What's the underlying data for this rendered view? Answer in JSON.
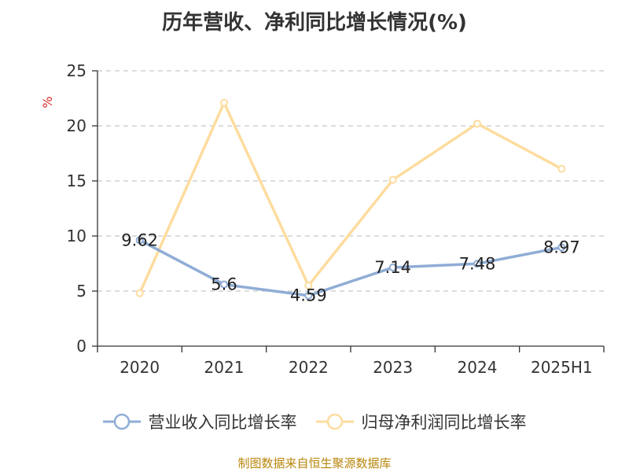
{
  "chart_data": {
    "type": "line",
    "title": "历年营收、净利同比增长情况(%)",
    "ylabel": "%",
    "categories": [
      "2020",
      "2021",
      "2022",
      "2023",
      "2024",
      "2025H1"
    ],
    "ylim": [
      0,
      25
    ],
    "yticks": [
      0,
      5,
      10,
      15,
      20,
      25
    ],
    "grid": true,
    "legend_position": "bottom",
    "series": [
      {
        "name": "营业收入同比增长率",
        "color": "#8fadd6",
        "values": [
          9.62,
          5.6,
          4.59,
          7.14,
          7.48,
          8.97
        ],
        "labels_shown": true
      },
      {
        "name": "归母净利润同比增长率",
        "color": "#fddc9e",
        "values": [
          4.8,
          22.1,
          5.5,
          15.1,
          20.2,
          16.1
        ],
        "labels_shown": false
      }
    ]
  },
  "source": "制图数据来自恒生聚源数据库"
}
